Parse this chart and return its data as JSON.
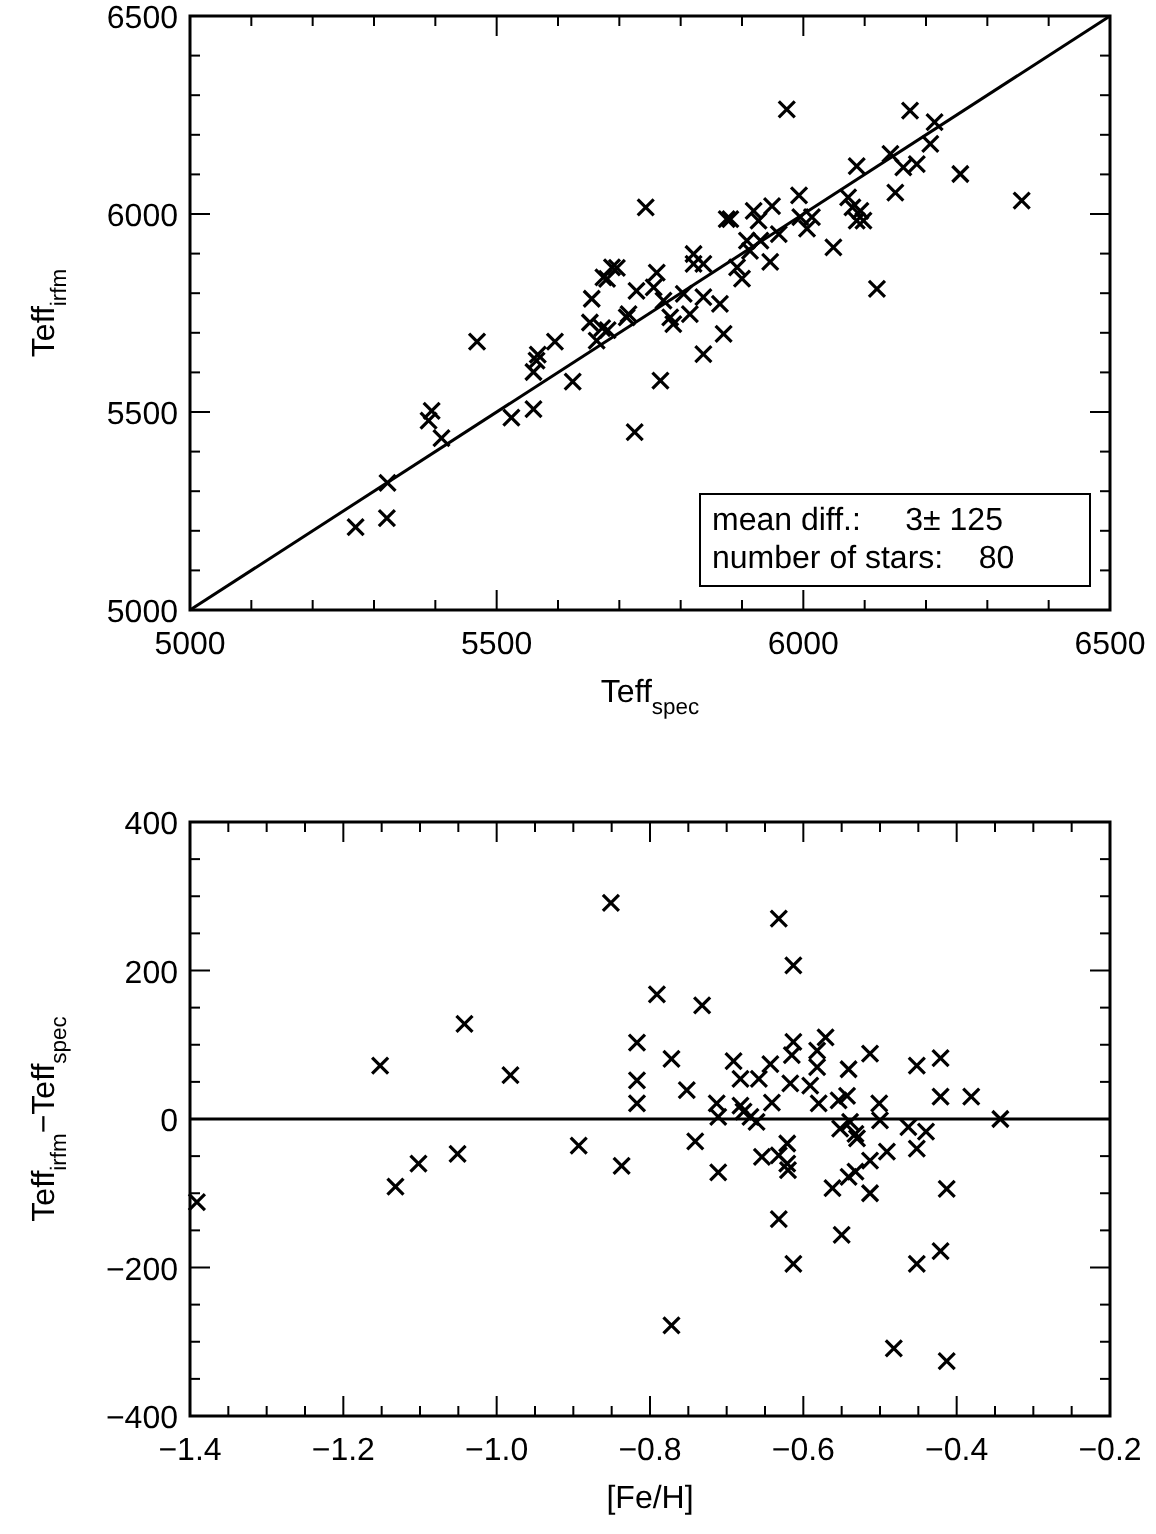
{
  "chart_data": [
    {
      "type": "scatter",
      "xlabel": "Teff$_{spec}$",
      "ylabel": "Teff$_{irfm}$",
      "xlim": [
        5000,
        6500
      ],
      "ylim": [
        5000,
        6500
      ],
      "xticks": [
        5000,
        {
          "value": 5100,
          "label": null
        },
        {
          "value": 5200,
          "label": null
        },
        {
          "value": 5300,
          "label": null
        },
        {
          "value": 5400,
          "label": null
        },
        5500,
        {
          "value": 5600,
          "label": null
        },
        {
          "value": 5700,
          "label": null
        },
        {
          "value": 5800,
          "label": null
        },
        {
          "value": 5900,
          "label": null
        },
        6000,
        {
          "value": 6100,
          "label": null
        },
        {
          "value": 6200,
          "label": null
        },
        {
          "value": 6300,
          "label": null
        },
        {
          "value": 6400,
          "label": null
        },
        6500
      ],
      "yticks": [
        5000,
        {
          "value": 5100,
          "label": null
        },
        {
          "value": 5200,
          "label": null
        },
        {
          "value": 5300,
          "label": null
        },
        {
          "value": 5400,
          "label": null
        },
        5500,
        {
          "value": 5600,
          "label": null
        },
        {
          "value": 5700,
          "label": null
        },
        {
          "value": 5800,
          "label": null
        },
        {
          "value": 5900,
          "label": null
        },
        6000,
        {
          "value": 6100,
          "label": null
        },
        {
          "value": 6200,
          "label": null
        },
        {
          "value": 6300,
          "label": null
        },
        {
          "value": 6400,
          "label": null
        },
        6500
      ],
      "annotations": [
        "mean diff.:     3± 125",
        "number of stars:    80"
      ],
      "series": [
        {
          "marker": "cross",
          "color": "#000000",
          "x": [
            5270,
            5321,
            5322,
            5389,
            5394,
            5410,
            5468,
            5524,
            5560,
            5560,
            5565,
            5567,
            5595,
            5624,
            5655,
            5652,
            5663,
            5672,
            5681,
            5680,
            5696,
            5712,
            5715,
            5725,
            5728,
            5688,
            5674,
            5743,
            5756,
            5761,
            5767,
            5772,
            5783,
            5788,
            5805,
            5815,
            5821,
            5821,
            5837,
            5837,
            5837,
            5864,
            5870,
            5875,
            5881,
            5892,
            5900,
            5908,
            5913,
            5919,
            5927,
            5930,
            5946,
            5949,
            5960,
            5973,
            5993,
            5995,
            6006,
            6014,
            6049,
            6073,
            6080,
            6087,
            6087,
            6098,
            6093,
            6120,
            6142,
            6150,
            6163,
            6174,
            6185,
            6207,
            6214,
            6256,
            6356
          ],
          "values": [
            5209,
            5232,
            5321,
            5478,
            5503,
            5434,
            5678,
            5486,
            5507,
            5601,
            5630,
            5645,
            5678,
            5577,
            5786,
            5726,
            5680,
            5712,
            5707,
            5836,
            5864,
            5739,
            5747,
            5449,
            5806,
            5865,
            5840,
            6017,
            5815,
            5852,
            5579,
            5781,
            5739,
            5722,
            5798,
            5747,
            5899,
            5874,
            5874,
            5646,
            5790,
            5773,
            5697,
            5987,
            5987,
            5865,
            5837,
            5933,
            5907,
            6008,
            5983,
            5933,
            5879,
            6020,
            5949,
            6264,
            6047,
            5992,
            5963,
            5992,
            5916,
            6042,
            6017,
            6121,
            5983,
            5983,
            6008,
            5811,
            6152,
            6054,
            6118,
            6261,
            6126,
            6177,
            6232,
            6101,
            6034
          ]
        },
        {
          "type": "line",
          "marker": "none",
          "color": "#000000",
          "x": [
            5000,
            6500
          ],
          "values": [
            5000,
            6500
          ]
        }
      ]
    },
    {
      "type": "scatter",
      "xlabel": "[Fe/H]",
      "ylabel": "Teff$_{irfm}$−Teff$_{spec}$",
      "marker": "cross",
      "xlim": [
        -1.4,
        -0.2
      ],
      "ylim": [
        -400,
        400
      ],
      "xticks": [
        {
          "value": -1.4,
          "label": "−1.4"
        },
        {
          "value": -1.35,
          "label": null
        },
        {
          "value": -1.3,
          "label": null
        },
        {
          "value": -1.25,
          "label": null
        },
        {
          "value": -1.2,
          "label": "−1.2"
        },
        {
          "value": -1.15,
          "label": null
        },
        {
          "value": -1.1,
          "label": null
        },
        {
          "value": -1.05,
          "label": null
        },
        {
          "value": -1.0,
          "label": "−1.0"
        },
        {
          "value": -0.95,
          "label": null
        },
        {
          "value": -0.9,
          "label": null
        },
        {
          "value": -0.85,
          "label": null
        },
        {
          "value": -0.8,
          "label": "−0.8"
        },
        {
          "value": -0.75,
          "label": null
        },
        {
          "value": -0.7,
          "label": null
        },
        {
          "value": -0.65,
          "label": null
        },
        {
          "value": -0.6,
          "label": "−0.6"
        },
        {
          "value": -0.55,
          "label": null
        },
        {
          "value": -0.5,
          "label": null
        },
        {
          "value": -0.45,
          "label": null
        },
        {
          "value": -0.4,
          "label": "−0.4"
        },
        {
          "value": -0.35,
          "label": null
        },
        {
          "value": -0.3,
          "label": null
        },
        {
          "value": -0.25,
          "label": null
        },
        {
          "value": -0.2,
          "label": "−0.2"
        }
      ],
      "yticks": [
        {
          "value": -400,
          "label": "−400"
        },
        {
          "value": -350,
          "label": null
        },
        {
          "value": -300,
          "label": null
        },
        {
          "value": -250,
          "label": null
        },
        {
          "value": -200,
          "label": "−200"
        },
        {
          "value": -150,
          "label": null
        },
        {
          "value": -100,
          "label": null
        },
        {
          "value": -50,
          "label": null
        },
        0,
        {
          "value": 50,
          "label": null
        },
        {
          "value": 100,
          "label": null
        },
        {
          "value": 150,
          "label": null
        },
        200,
        {
          "value": 250,
          "label": null
        },
        {
          "value": 300,
          "label": null
        },
        {
          "value": 350,
          "label": null
        },
        400
      ],
      "ref_lines": [
        {
          "axis": "y",
          "value": 0,
          "color": "#000000"
        }
      ],
      "series": [
        {
          "color": "#000000",
          "x": [
            -1.391,
            -1.152,
            -1.132,
            -1.102,
            -1.051,
            -1.042,
            -0.982,
            -0.893,
            -0.851,
            -0.837,
            -0.817,
            -0.817,
            -0.817,
            -0.791,
            -0.772,
            -0.772,
            -0.752,
            -0.741,
            -0.732,
            -0.713,
            -0.711,
            -0.711,
            -0.691,
            -0.682,
            -0.682,
            -0.678,
            -0.669,
            -0.661,
            -0.658,
            -0.654,
            -0.643,
            -0.641,
            -0.632,
            -0.632,
            -0.632,
            -0.621,
            -0.621,
            -0.62,
            -0.617,
            -0.615,
            -0.613,
            -0.613,
            -0.613,
            -0.591,
            -0.582,
            -0.582,
            -0.58,
            -0.571,
            -0.562,
            -0.554,
            -0.552,
            -0.55,
            -0.543,
            -0.541,
            -0.541,
            -0.539,
            -0.532,
            -0.532,
            -0.53,
            -0.513,
            -0.513,
            -0.513,
            -0.501,
            -0.5,
            -0.491,
            -0.482,
            -0.463,
            -0.452,
            -0.452,
            -0.452,
            -0.44,
            -0.421,
            -0.421,
            -0.421,
            -0.413,
            -0.413,
            -0.381,
            -0.343
          ],
          "values": [
            -112,
            72,
            -91,
            -60,
            -47,
            128,
            59,
            -36,
            291,
            -63,
            103,
            52,
            21,
            168,
            81,
            -278,
            39,
            -30,
            153,
            21,
            3,
            -72,
            78,
            54,
            18,
            10,
            3,
            -4,
            54,
            -51,
            74,
            22,
            270,
            -49,
            -135,
            -33,
            -60,
            -69,
            48,
            86,
            104,
            207,
            -195,
            45,
            92,
            70,
            21,
            110,
            -93,
            25,
            -13,
            -156,
            31,
            67,
            -78,
            -4,
            -71,
            -20,
            -26,
            88,
            -56,
            -100,
            21,
            -2,
            -44,
            -309,
            -11,
            72,
            -40,
            -195,
            -17,
            82,
            30,
            -178,
            -94,
            -326,
            30,
            0
          ]
        }
      ]
    }
  ]
}
